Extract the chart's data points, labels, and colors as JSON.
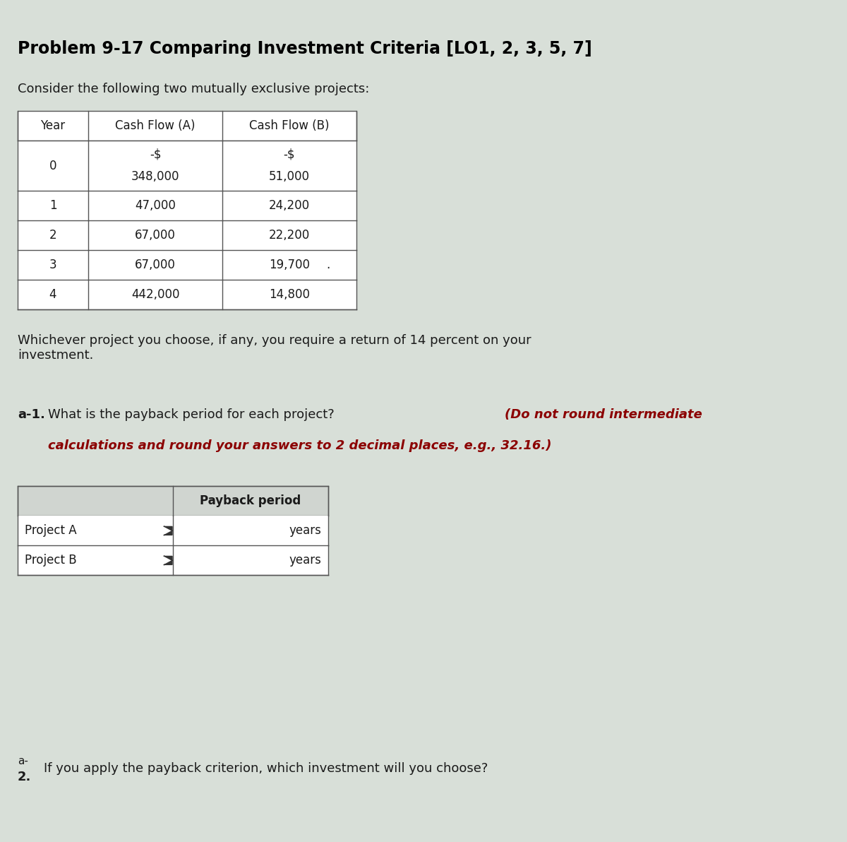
{
  "title": "Problem 9-17 Comparing Investment Criteria [LO1, 2, 3, 5, 7]",
  "intro_text": "Consider the following two mutually exclusive projects:",
  "table1_headers": [
    "Year",
    "Cash Flow (A)",
    "Cash Flow (B)"
  ],
  "table1_row0_year": "0",
  "table1_row0_cf_a_line1": "-$",
  "table1_row0_cf_a_line2": "348,000",
  "table1_row0_cf_b_line1": "-$",
  "table1_row0_cf_b_line2": "51,000",
  "table1_rows": [
    [
      "1",
      "47,000",
      "24,200"
    ],
    [
      "2",
      "67,000",
      "22,200"
    ],
    [
      "3",
      "67,000",
      "19,700"
    ],
    [
      "4",
      "442,000",
      "14,800"
    ]
  ],
  "return_text": "Whichever project you choose, if any, you require a return of 14 percent on your\ninvestment.",
  "table2_header": "Payback period",
  "table2_rows": [
    [
      "Project A",
      "years"
    ],
    [
      "Project B",
      "years"
    ]
  ],
  "bottom_question": "If you apply the payback criterion, which investment will you choose?",
  "bg_color": "#d8dfd8",
  "text_color": "#1a1a1a",
  "bold_text_color": "#8b0000",
  "title_color": "#000000",
  "table_border_color": "#555555"
}
